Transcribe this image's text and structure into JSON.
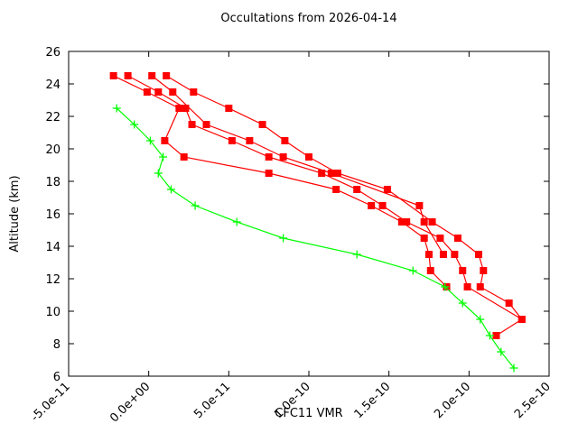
{
  "colors": {
    "background": "#ffffff",
    "axis": "#000000",
    "red_series": "#ff0000",
    "green_series": "#00ff00"
  },
  "chart_data": {
    "type": "line",
    "title": "Occultations from 2026-04-14",
    "xlabel": "CFC11 VMR",
    "ylabel": "Altitude (km)",
    "xlim": [
      -5e-11,
      2.5e-10
    ],
    "ylim": [
      6,
      26
    ],
    "grid": false,
    "legend": "none",
    "x_ticks": {
      "values": [
        -5e-11,
        0,
        5e-11,
        1e-10,
        1.5e-10,
        2e-10,
        2.5e-10
      ],
      "labels": [
        "-5.0e-11",
        "0.0e+00",
        "5.0e-11",
        "1.0e-10",
        "1.5e-10",
        "2.0e-10",
        "2.5e-10"
      ]
    },
    "y_ticks": {
      "values": [
        6,
        8,
        10,
        12,
        14,
        16,
        18,
        20,
        22,
        24,
        26
      ],
      "labels": [
        "6",
        "8",
        "10",
        "12",
        "14",
        "16",
        "18",
        "20",
        "22",
        "24",
        "26"
      ]
    },
    "series": [
      {
        "name": "occultation-red-1",
        "color": "#ff0000",
        "marker": "square",
        "points": [
          [
            -2.2e-11,
            24.5
          ],
          [
            -1e-12,
            23.5
          ],
          [
            1.9e-11,
            22.5
          ],
          [
            1e-11,
            20.5
          ],
          [
            2.2e-11,
            19.5
          ],
          [
            7.5e-11,
            18.5
          ],
          [
            1.17e-10,
            17.5
          ],
          [
            1.39e-10,
            16.5
          ],
          [
            1.58e-10,
            15.5
          ],
          [
            1.72e-10,
            14.5
          ],
          [
            1.75e-10,
            13.5
          ],
          [
            1.76e-10,
            12.5
          ],
          [
            1.86e-10,
            11.5
          ]
        ]
      },
      {
        "name": "occultation-red-2",
        "color": "#ff0000",
        "marker": "square",
        "points": [
          [
            -1.3e-11,
            24.5
          ],
          [
            6e-12,
            23.5
          ],
          [
            2.3e-11,
            22.5
          ],
          [
            2.7e-11,
            21.5
          ],
          [
            5.2e-11,
            20.5
          ],
          [
            7.5e-11,
            19.5
          ],
          [
            1.08e-10,
            18.5
          ],
          [
            1.3e-10,
            17.5
          ],
          [
            1.46e-10,
            16.5
          ],
          [
            1.61e-10,
            15.5
          ],
          [
            1.82e-10,
            14.5
          ],
          [
            1.91e-10,
            13.5
          ],
          [
            1.96e-10,
            12.5
          ],
          [
            1.99e-10,
            11.5
          ],
          [
            2.33e-10,
            9.5
          ]
        ]
      },
      {
        "name": "occultation-red-3",
        "color": "#ff0000",
        "marker": "square",
        "points": [
          [
            2e-12,
            24.5
          ],
          [
            1.5e-11,
            23.5
          ],
          [
            3.6e-11,
            21.5
          ],
          [
            6.3e-11,
            20.5
          ],
          [
            8.4e-11,
            19.5
          ],
          [
            1.14e-10,
            18.5
          ],
          [
            1.69e-10,
            16.5
          ],
          [
            1.72e-10,
            15.5
          ],
          [
            1.84e-10,
            13.5
          ]
        ]
      },
      {
        "name": "occultation-red-4",
        "color": "#ff0000",
        "marker": "square",
        "points": [
          [
            1.1e-11,
            24.5
          ],
          [
            2.8e-11,
            23.5
          ],
          [
            5e-11,
            22.5
          ],
          [
            7.1e-11,
            21.5
          ],
          [
            8.5e-11,
            20.5
          ],
          [
            1e-10,
            19.5
          ],
          [
            1.18e-10,
            18.5
          ],
          [
            1.49e-10,
            17.5
          ],
          [
            1.77e-10,
            15.5
          ],
          [
            1.93e-10,
            14.5
          ],
          [
            2.06e-10,
            13.5
          ],
          [
            2.09e-10,
            12.5
          ],
          [
            2.07e-10,
            11.5
          ],
          [
            2.25e-10,
            10.5
          ],
          [
            2.33e-10,
            9.5
          ],
          [
            2.17e-10,
            8.5
          ]
        ]
      },
      {
        "name": "occultation-green",
        "color": "#00ff00",
        "marker": "plus",
        "points": [
          [
            -2e-11,
            22.5
          ],
          [
            -9e-12,
            21.5
          ],
          [
            1e-12,
            20.5
          ],
          [
            9e-12,
            19.5
          ],
          [
            6e-12,
            18.5
          ],
          [
            1.4e-11,
            17.5
          ],
          [
            2.9e-11,
            16.5
          ],
          [
            5.5e-11,
            15.5
          ],
          [
            8.4e-11,
            14.5
          ],
          [
            1.3e-10,
            13.5
          ],
          [
            1.65e-10,
            12.5
          ],
          [
            1.85e-10,
            11.5
          ],
          [
            1.96e-10,
            10.5
          ],
          [
            2.07e-10,
            9.5
          ],
          [
            2.13e-10,
            8.5
          ],
          [
            2.2e-10,
            7.5
          ],
          [
            2.28e-10,
            6.5
          ]
        ]
      }
    ]
  }
}
